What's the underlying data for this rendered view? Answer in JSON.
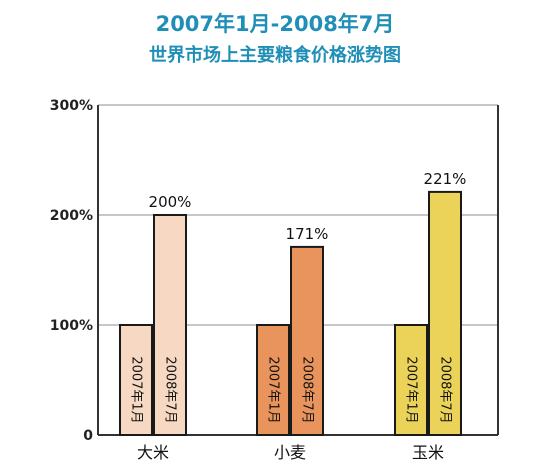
{
  "chart_data": {
    "type": "bar",
    "title_line1": "2007年1月-2008年7月",
    "title_line2": "世界市场上主要粮食价格涨势图",
    "categories": [
      "大米",
      "小麦",
      "玉米"
    ],
    "series": [
      {
        "name": "2007年1月",
        "values": [
          100,
          100,
          100
        ]
      },
      {
        "name": "2008年7月",
        "values": [
          200,
          171,
          221
        ]
      }
    ],
    "value_labels": [
      "200%",
      "171%",
      "221%"
    ],
    "y_ticks": [
      0,
      100,
      200,
      300
    ],
    "y_tick_labels": [
      "0",
      "100%",
      "200%",
      "300%"
    ],
    "ylim": [
      0,
      300
    ],
    "grid": true,
    "colors": {
      "2007": [
        "#f7d8c2",
        "#e8945c",
        "#ebd35a"
      ],
      "2008": [
        "#f7d8c2",
        "#e8945c",
        "#ebd35a"
      ],
      "title": "#1f8fb8",
      "grid": "#c7c7c7",
      "axis": "#333333"
    }
  }
}
